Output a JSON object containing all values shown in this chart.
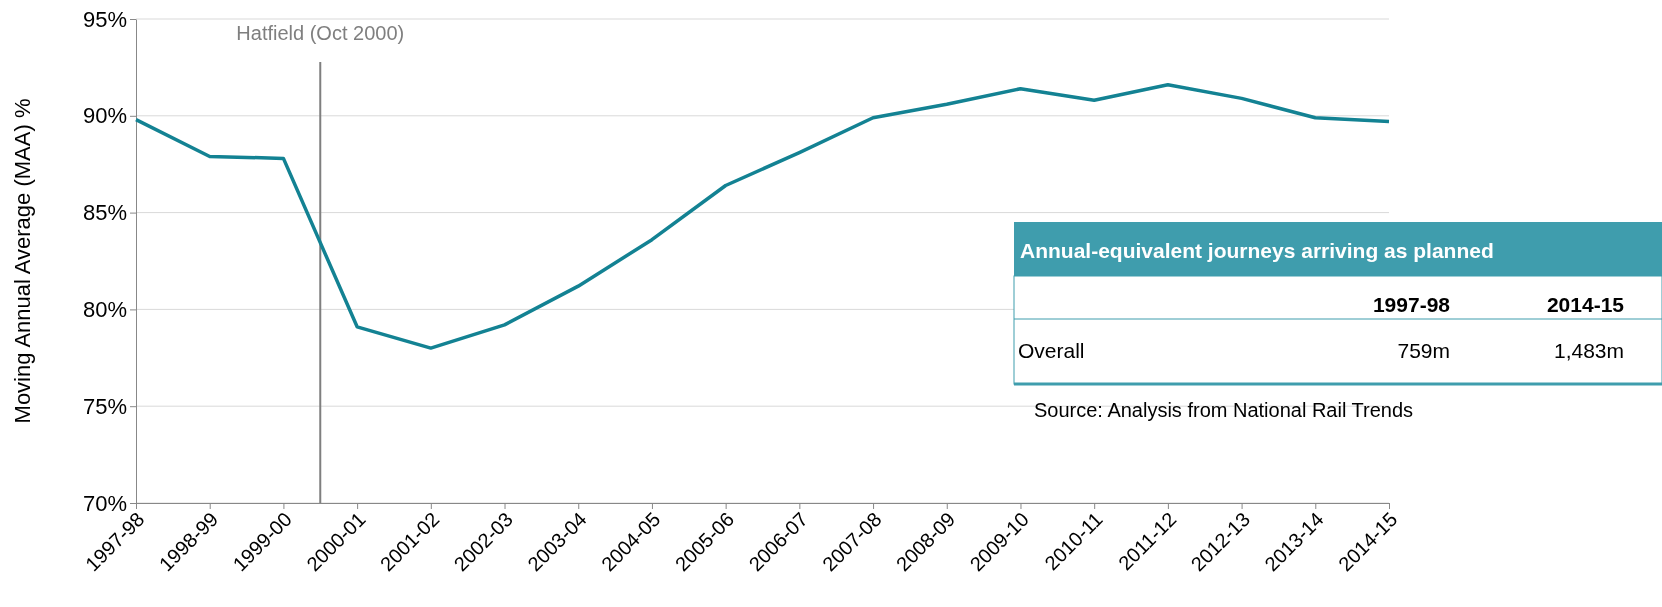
{
  "chart_data": [
    {
      "type": "line",
      "ylabel": "Moving Annual Average (MAA) %",
      "categories": [
        "1997-98",
        "1998-99",
        "1999-00",
        "2000-01",
        "2001-02",
        "2002-03",
        "2003-04",
        "2004-05",
        "2005-06",
        "2006-07",
        "2007-08",
        "2008-09",
        "2009-10",
        "2010-11",
        "2011-12",
        "2012-13",
        "2013-14",
        "2014-15"
      ],
      "series": [
        {
          "color": "#138293",
          "values": [
            89.8,
            87.9,
            87.8,
            79.1,
            78.0,
            79.2,
            81.2,
            83.6,
            86.4,
            88.1,
            89.9,
            90.6,
            91.4,
            90.8,
            91.6,
            90.9,
            89.9,
            89.7
          ]
        }
      ],
      "ylim": [
        70,
        95
      ],
      "yticks": [
        {
          "value": 70,
          "label": "70%"
        },
        {
          "value": 75,
          "label": "75%"
        },
        {
          "value": 80,
          "label": "80%"
        },
        {
          "value": 85,
          "label": "85%"
        },
        {
          "value": 90,
          "label": "90%"
        },
        {
          "value": 95,
          "label": "95%"
        }
      ],
      "grid": "y",
      "marker": "none",
      "line_style": "solid",
      "ref_lines": [
        {
          "axis": "x",
          "value": "2000-01",
          "label": "Hatfield (Oct 2000)",
          "color": "#7f7f7f"
        }
      ],
      "annotations": [
        "Source: Analysis from National Rail Trends"
      ]
    },
    {
      "type": "other",
      "title": "Annual-equivalent journeys arriving as planned",
      "categories": [
        "Overall"
      ],
      "series": [
        {
          "name": "1997-98",
          "values": [
            759
          ],
          "value_labels": [
            "759m"
          ]
        },
        {
          "name": "2014-15",
          "values": [
            1483
          ],
          "value_labels": [
            "1,483m"
          ]
        }
      ]
    }
  ]
}
